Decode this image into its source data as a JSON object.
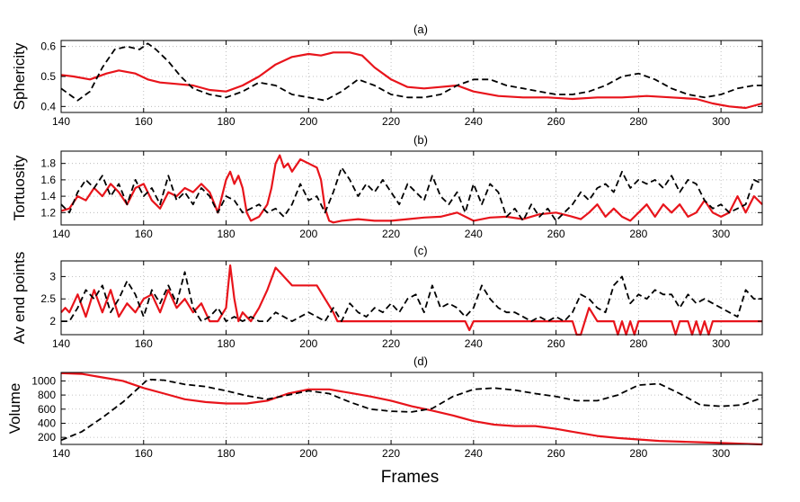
{
  "colors": {
    "series_red": "#e8141b",
    "series_black": "#000000",
    "grid": "#b0b0b0",
    "axis": "#000000"
  },
  "xlabel": "Frames",
  "chart_data": [
    {
      "type": "line",
      "title": "(a)",
      "ylabel": "Sphericity",
      "xlim": [
        140,
        310
      ],
      "ylim": [
        0.38,
        0.62
      ],
      "x_ticks": [
        140,
        160,
        180,
        200,
        220,
        240,
        260,
        280,
        300
      ],
      "y_ticks": [
        0.4,
        0.5,
        0.6
      ],
      "grid": true,
      "series": [
        {
          "color": "#e8141b",
          "dash": "solid",
          "x": [
            140,
            143,
            147,
            151,
            154,
            158,
            161,
            164,
            168,
            172,
            176,
            180,
            184,
            188,
            192,
            196,
            200,
            203,
            206,
            210,
            213,
            216,
            220,
            224,
            228,
            232,
            236,
            240,
            246,
            252,
            258,
            264,
            270,
            276,
            282,
            288,
            294,
            298,
            302,
            306,
            310
          ],
          "y": [
            0.505,
            0.5,
            0.49,
            0.51,
            0.52,
            0.51,
            0.49,
            0.48,
            0.475,
            0.47,
            0.455,
            0.45,
            0.47,
            0.5,
            0.54,
            0.565,
            0.575,
            0.57,
            0.58,
            0.58,
            0.57,
            0.53,
            0.49,
            0.465,
            0.46,
            0.465,
            0.47,
            0.45,
            0.435,
            0.43,
            0.43,
            0.425,
            0.43,
            0.43,
            0.435,
            0.43,
            0.425,
            0.41,
            0.4,
            0.395,
            0.41
          ]
        },
        {
          "color": "#000000",
          "dash": "dashed",
          "x": [
            140,
            142,
            144,
            147,
            150,
            153,
            156,
            159,
            161,
            163,
            166,
            169,
            172,
            176,
            180,
            184,
            188,
            192,
            196,
            200,
            204,
            208,
            212,
            216,
            220,
            224,
            228,
            232,
            236,
            240,
            244,
            248,
            252,
            256,
            260,
            264,
            268,
            272,
            276,
            280,
            284,
            288,
            292,
            296,
            300,
            304,
            308,
            310
          ],
          "y": [
            0.46,
            0.44,
            0.42,
            0.45,
            0.53,
            0.59,
            0.6,
            0.59,
            0.61,
            0.59,
            0.55,
            0.5,
            0.46,
            0.44,
            0.43,
            0.45,
            0.48,
            0.47,
            0.44,
            0.43,
            0.42,
            0.45,
            0.49,
            0.47,
            0.44,
            0.43,
            0.43,
            0.44,
            0.47,
            0.49,
            0.49,
            0.47,
            0.46,
            0.45,
            0.44,
            0.44,
            0.45,
            0.47,
            0.5,
            0.51,
            0.49,
            0.46,
            0.44,
            0.43,
            0.44,
            0.46,
            0.47,
            0.47
          ]
        }
      ]
    },
    {
      "type": "line",
      "title": "(b)",
      "ylabel": "Tortuosity",
      "xlim": [
        140,
        310
      ],
      "ylim": [
        1.05,
        1.95
      ],
      "x_ticks": [
        140,
        160,
        180,
        200,
        220,
        240,
        260,
        280,
        300
      ],
      "y_ticks": [
        1.2,
        1.4,
        1.6,
        1.8
      ],
      "grid": true,
      "series": [
        {
          "color": "#e8141b",
          "dash": "solid",
          "x": [
            140,
            142,
            144,
            146,
            148,
            150,
            152,
            154,
            156,
            158,
            160,
            162,
            164,
            166,
            168,
            170,
            172,
            174,
            176,
            178,
            180,
            181,
            182,
            183,
            184,
            185,
            186,
            188,
            190,
            191,
            192,
            193,
            194,
            195,
            196,
            198,
            200,
            202,
            203,
            204,
            205,
            206,
            208,
            212,
            216,
            220,
            224,
            228,
            232,
            236,
            240,
            244,
            248,
            252,
            256,
            260,
            264,
            266,
            268,
            270,
            272,
            274,
            276,
            278,
            280,
            282,
            284,
            286,
            288,
            290,
            292,
            294,
            296,
            298,
            300,
            302,
            304,
            306,
            308,
            310
          ],
          "y": [
            1.22,
            1.25,
            1.4,
            1.35,
            1.5,
            1.4,
            1.55,
            1.45,
            1.3,
            1.5,
            1.55,
            1.35,
            1.25,
            1.45,
            1.4,
            1.5,
            1.45,
            1.55,
            1.45,
            1.2,
            1.6,
            1.7,
            1.55,
            1.65,
            1.5,
            1.2,
            1.1,
            1.15,
            1.3,
            1.5,
            1.8,
            1.9,
            1.75,
            1.8,
            1.7,
            1.85,
            1.8,
            1.75,
            1.6,
            1.25,
            1.1,
            1.08,
            1.1,
            1.12,
            1.1,
            1.1,
            1.12,
            1.14,
            1.15,
            1.2,
            1.1,
            1.14,
            1.15,
            1.12,
            1.18,
            1.2,
            1.15,
            1.12,
            1.2,
            1.3,
            1.15,
            1.25,
            1.15,
            1.1,
            1.2,
            1.3,
            1.15,
            1.3,
            1.2,
            1.3,
            1.15,
            1.2,
            1.35,
            1.2,
            1.15,
            1.2,
            1.4,
            1.2,
            1.4,
            1.3
          ]
        },
        {
          "color": "#000000",
          "dash": "dashed",
          "x": [
            140,
            142,
            144,
            146,
            148,
            150,
            152,
            154,
            156,
            158,
            160,
            162,
            164,
            166,
            168,
            170,
            172,
            174,
            176,
            178,
            180,
            182,
            184,
            186,
            188,
            190,
            192,
            194,
            196,
            198,
            200,
            202,
            204,
            206,
            208,
            210,
            212,
            214,
            216,
            218,
            220,
            222,
            224,
            226,
            228,
            230,
            232,
            234,
            236,
            238,
            240,
            242,
            244,
            246,
            248,
            250,
            252,
            254,
            256,
            258,
            260,
            262,
            264,
            266,
            268,
            270,
            272,
            274,
            276,
            278,
            280,
            282,
            284,
            286,
            288,
            290,
            292,
            294,
            296,
            298,
            300,
            302,
            304,
            306,
            308,
            310
          ],
          "y": [
            1.3,
            1.2,
            1.45,
            1.6,
            1.5,
            1.65,
            1.4,
            1.55,
            1.3,
            1.6,
            1.4,
            1.5,
            1.3,
            1.65,
            1.35,
            1.45,
            1.3,
            1.5,
            1.4,
            1.2,
            1.4,
            1.35,
            1.2,
            1.25,
            1.3,
            1.2,
            1.25,
            1.15,
            1.3,
            1.55,
            1.35,
            1.4,
            1.2,
            1.45,
            1.75,
            1.6,
            1.4,
            1.55,
            1.45,
            1.6,
            1.45,
            1.3,
            1.55,
            1.45,
            1.35,
            1.65,
            1.4,
            1.3,
            1.45,
            1.2,
            1.55,
            1.3,
            1.55,
            1.45,
            1.15,
            1.25,
            1.1,
            1.3,
            1.15,
            1.25,
            1.1,
            1.2,
            1.3,
            1.45,
            1.35,
            1.5,
            1.55,
            1.45,
            1.7,
            1.5,
            1.6,
            1.55,
            1.6,
            1.5,
            1.65,
            1.45,
            1.6,
            1.55,
            1.35,
            1.25,
            1.3,
            1.2,
            1.25,
            1.3,
            1.6,
            1.55
          ]
        }
      ]
    },
    {
      "type": "line",
      "title": "(c)",
      "ylabel": "Av end points",
      "xlim": [
        140,
        310
      ],
      "ylim": [
        1.7,
        3.35
      ],
      "x_ticks": [
        140,
        160,
        180,
        200,
        220,
        240,
        260,
        280,
        300
      ],
      "y_ticks": [
        2,
        2.5,
        3
      ],
      "grid": true,
      "series": [
        {
          "color": "#e8141b",
          "dash": "solid",
          "x": [
            140,
            141,
            142,
            144,
            146,
            148,
            150,
            152,
            154,
            156,
            158,
            160,
            162,
            164,
            166,
            168,
            170,
            172,
            174,
            176,
            178,
            180,
            181,
            182,
            183,
            184,
            186,
            188,
            190,
            192,
            193,
            194,
            196,
            198,
            200,
            202,
            204,
            206,
            207,
            208,
            210,
            220,
            230,
            238,
            239,
            240,
            241,
            242,
            250,
            262,
            264,
            265,
            266,
            267,
            268,
            270,
            272,
            274,
            275,
            276,
            277,
            278,
            279,
            280,
            281,
            282,
            284,
            288,
            289,
            290,
            292,
            293,
            294,
            295,
            296,
            297,
            298,
            300,
            305,
            310
          ],
          "y": [
            2.2,
            2.3,
            2.2,
            2.6,
            2.1,
            2.7,
            2.2,
            2.7,
            2.1,
            2.4,
            2.2,
            2.5,
            2.6,
            2.2,
            2.7,
            2.3,
            2.5,
            2.2,
            2.4,
            2.0,
            2.0,
            2.3,
            3.25,
            2.5,
            2.0,
            2.2,
            2.0,
            2.3,
            2.7,
            3.2,
            3.1,
            3.0,
            2.8,
            2.8,
            2.8,
            2.8,
            2.5,
            2.2,
            2.0,
            2.0,
            2.0,
            2.0,
            2.0,
            2.0,
            1.8,
            2.0,
            2.0,
            2.0,
            2.0,
            2.0,
            2.0,
            1.7,
            1.7,
            2.0,
            2.3,
            2.0,
            2.0,
            2.0,
            1.7,
            2.0,
            1.7,
            2.0,
            1.7,
            2.0,
            2.0,
            2.0,
            2.0,
            2.0,
            1.7,
            2.0,
            2.0,
            1.7,
            2.0,
            1.7,
            2.0,
            1.7,
            2.0,
            2.0,
            2.0,
            2.0
          ]
        },
        {
          "color": "#000000",
          "dash": "dashed",
          "x": [
            140,
            142,
            144,
            146,
            148,
            150,
            152,
            154,
            156,
            158,
            160,
            162,
            164,
            166,
            168,
            170,
            172,
            174,
            176,
            178,
            180,
            182,
            184,
            186,
            188,
            190,
            192,
            194,
            196,
            198,
            200,
            202,
            204,
            206,
            208,
            210,
            212,
            214,
            216,
            218,
            220,
            222,
            224,
            226,
            228,
            230,
            232,
            234,
            236,
            238,
            240,
            242,
            244,
            246,
            248,
            250,
            252,
            254,
            256,
            258,
            260,
            262,
            264,
            266,
            268,
            270,
            272,
            274,
            276,
            278,
            280,
            282,
            284,
            286,
            288,
            290,
            292,
            294,
            296,
            298,
            300,
            302,
            304,
            306,
            308,
            310
          ],
          "y": [
            2.0,
            2.0,
            2.3,
            2.7,
            2.5,
            2.8,
            2.2,
            2.5,
            2.9,
            2.6,
            2.1,
            2.7,
            2.4,
            2.8,
            2.4,
            3.1,
            2.3,
            2.0,
            2.1,
            2.3,
            2.0,
            2.1,
            2.0,
            2.1,
            2.0,
            2.0,
            2.2,
            2.1,
            2.0,
            2.1,
            2.2,
            2.1,
            2.0,
            2.3,
            2.0,
            2.4,
            2.2,
            2.1,
            2.3,
            2.2,
            2.4,
            2.2,
            2.5,
            2.6,
            2.2,
            2.8,
            2.3,
            2.4,
            2.3,
            2.1,
            2.3,
            2.8,
            2.5,
            2.3,
            2.2,
            2.2,
            2.1,
            2.0,
            2.1,
            2.0,
            2.1,
            2.0,
            2.2,
            2.6,
            2.5,
            2.3,
            2.2,
            2.8,
            3.0,
            2.4,
            2.6,
            2.5,
            2.7,
            2.6,
            2.6,
            2.3,
            2.6,
            2.4,
            2.5,
            2.4,
            2.3,
            2.2,
            2.1,
            2.7,
            2.5,
            2.5
          ]
        }
      ]
    },
    {
      "type": "line",
      "title": "(d)",
      "ylabel": "Volume",
      "xlim": [
        140,
        310
      ],
      "ylim": [
        100,
        1120
      ],
      "x_ticks": [
        140,
        160,
        180,
        200,
        220,
        240,
        260,
        280,
        300
      ],
      "y_ticks": [
        200,
        400,
        600,
        800,
        1000
      ],
      "grid": true,
      "series": [
        {
          "color": "#e8141b",
          "dash": "solid",
          "x": [
            140,
            145,
            150,
            155,
            160,
            165,
            170,
            175,
            180,
            185,
            190,
            195,
            200,
            205,
            210,
            215,
            220,
            225,
            230,
            235,
            240,
            245,
            250,
            255,
            260,
            265,
            270,
            275,
            280,
            285,
            290,
            295,
            300,
            305,
            310
          ],
          "y": [
            1110,
            1100,
            1050,
            1000,
            900,
            820,
            740,
            700,
            680,
            680,
            720,
            820,
            880,
            880,
            830,
            780,
            720,
            640,
            580,
            510,
            430,
            380,
            360,
            360,
            320,
            270,
            220,
            190,
            170,
            150,
            140,
            130,
            120,
            110,
            100
          ]
        },
        {
          "color": "#000000",
          "dash": "dashed",
          "x": [
            140,
            145,
            150,
            155,
            158,
            161,
            165,
            170,
            175,
            180,
            185,
            190,
            195,
            200,
            205,
            210,
            215,
            220,
            225,
            230,
            235,
            240,
            245,
            250,
            255,
            260,
            265,
            270,
            275,
            280,
            285,
            290,
            295,
            300,
            305,
            310
          ],
          "y": [
            160,
            280,
            480,
            700,
            860,
            1020,
            1010,
            950,
            920,
            860,
            790,
            740,
            800,
            860,
            820,
            700,
            600,
            570,
            560,
            610,
            780,
            880,
            900,
            870,
            820,
            780,
            720,
            720,
            800,
            940,
            960,
            820,
            660,
            640,
            660,
            760
          ]
        }
      ]
    }
  ]
}
